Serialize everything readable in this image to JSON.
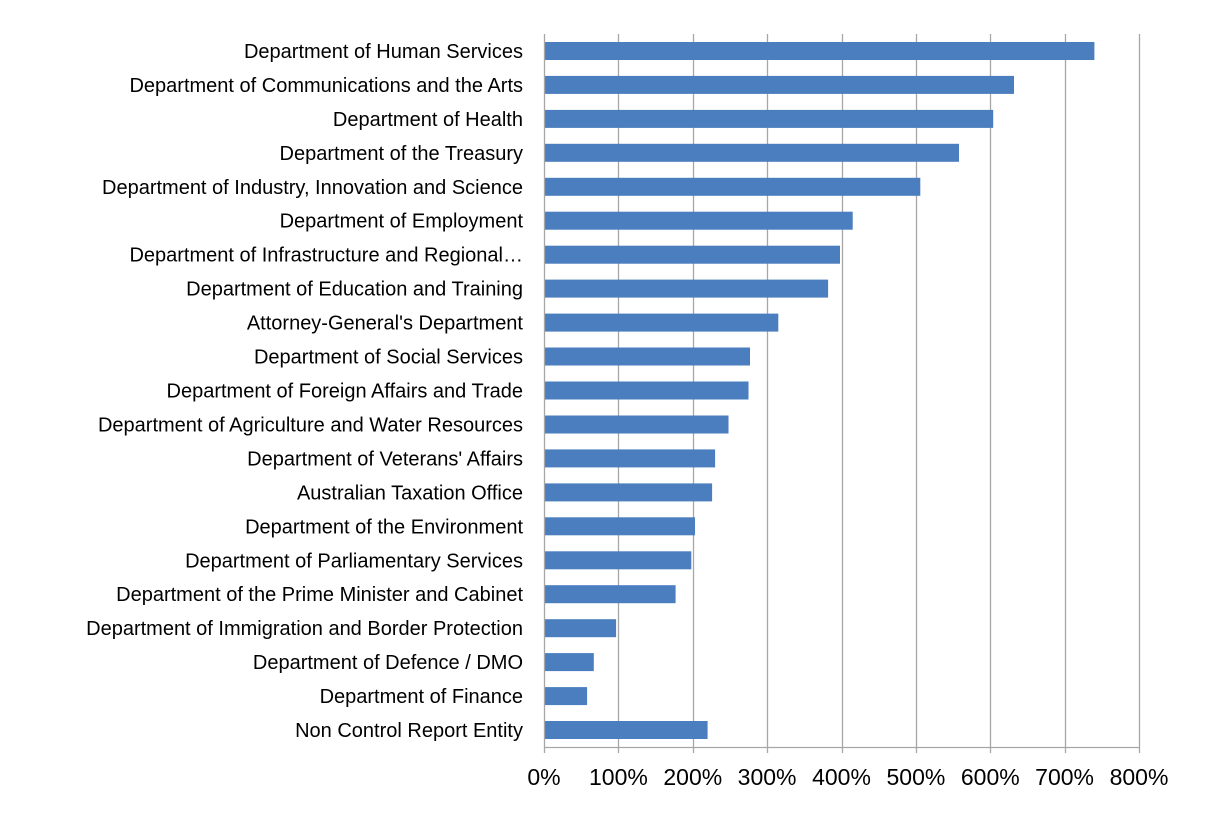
{
  "chart_data": {
    "type": "bar",
    "orientation": "horizontal",
    "title": "",
    "xlabel": "",
    "ylabel": "",
    "categories": [
      "Department of Human Services",
      "Department of Communications and the Arts",
      "Department of Health",
      "Department of the Treasury",
      "Department of Industry, Innovation and Science",
      "Department of Employment",
      "Department of Infrastructure and Regional…",
      "Department of Education and Training",
      "Attorney-General's Department",
      "Department of Social Services",
      "Department of Foreign Affairs and Trade",
      "Department of Agriculture and Water Resources",
      "Department of Veterans' Affairs",
      "Australian Taxation Office",
      "Department of the Environment",
      "Department of Parliamentary Services",
      "Department of the Prime Minister and Cabinet",
      "Department of Immigration and Border Protection",
      "Department of Defence / DMO",
      "Department of Finance",
      "Non Control Report Entity"
    ],
    "values": [
      740,
      632,
      604,
      558,
      506,
      415,
      398,
      382,
      315,
      277,
      275,
      248,
      230,
      226,
      203,
      198,
      177,
      97,
      67,
      58,
      220
    ],
    "xlim": [
      0,
      800
    ],
    "xticks": [
      0,
      100,
      200,
      300,
      400,
      500,
      600,
      700,
      800
    ],
    "tick_labels": [
      "0%",
      "100%",
      "200%",
      "300%",
      "400%",
      "500%",
      "600%",
      "700%",
      "800%"
    ],
    "grid": "vertical",
    "legend": "none",
    "colors": {
      "bar": "#4a7ebf",
      "grid": "#a6a6a6",
      "axis": "#a6a6a6"
    }
  }
}
